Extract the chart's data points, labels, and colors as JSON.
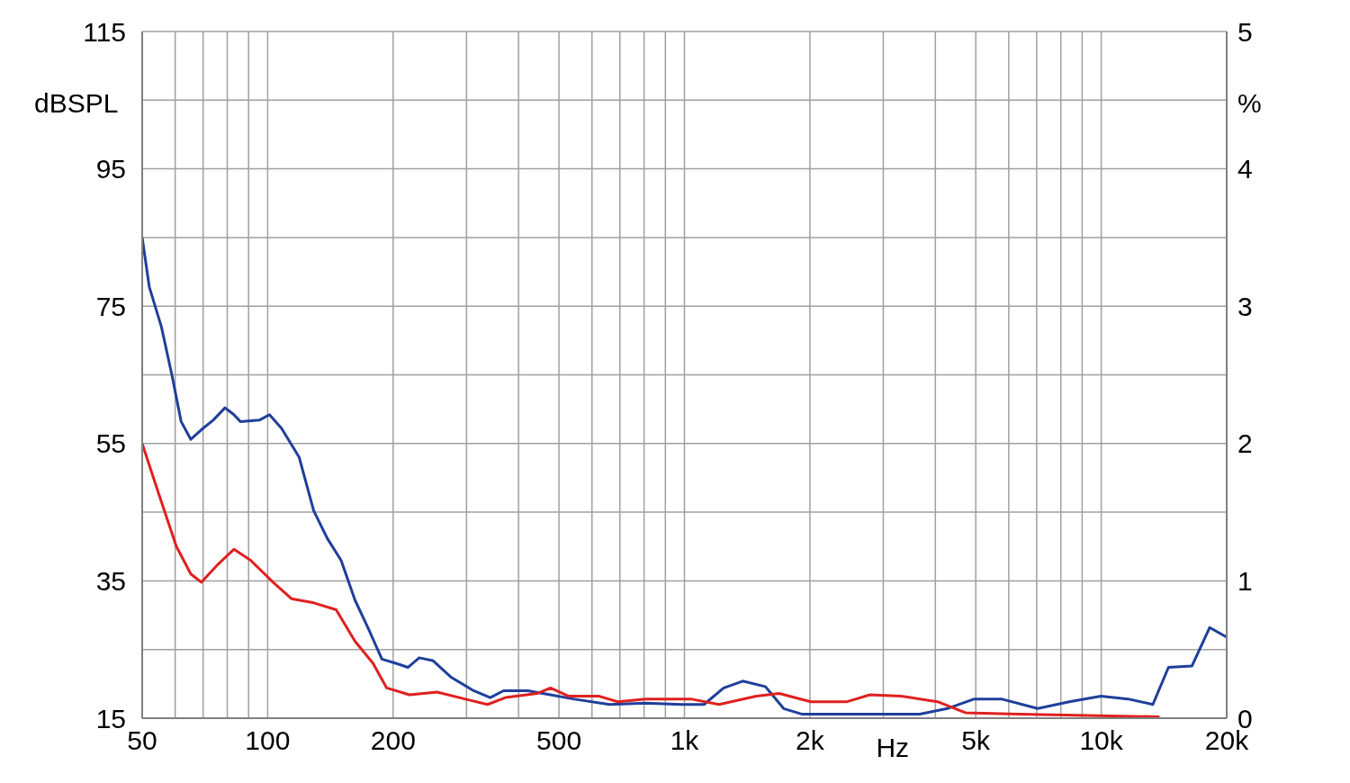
{
  "chart_data": {
    "type": "line",
    "xlabel": "Hz",
    "ylabel": "dBSPL",
    "y2label": "%",
    "log": "x",
    "grid": true,
    "legend": false,
    "marker": "none",
    "line_style": "solid",
    "xlim": [
      50,
      20000
    ],
    "xticks": [
      50,
      {
        "value": 60,
        "label": null
      },
      {
        "value": 70,
        "label": null
      },
      {
        "value": 80,
        "label": null
      },
      {
        "value": 90,
        "label": null
      },
      100,
      200,
      {
        "value": 300,
        "label": null
      },
      {
        "value": 400,
        "label": null
      },
      500,
      {
        "value": 600,
        "label": null
      },
      {
        "value": 700,
        "label": null
      },
      {
        "value": 800,
        "label": null
      },
      {
        "value": 900,
        "label": null
      },
      {
        "value": 1000,
        "label": "1k"
      },
      {
        "value": 2000,
        "label": "2k"
      },
      {
        "value": 3000,
        "label": null
      },
      {
        "value": 4000,
        "label": null
      },
      {
        "value": 5000,
        "label": "5k"
      },
      {
        "value": 6000,
        "label": null
      },
      {
        "value": 7000,
        "label": null
      },
      {
        "value": 8000,
        "label": null
      },
      {
        "value": 9000,
        "label": null
      },
      {
        "value": 10000,
        "label": "10k"
      },
      {
        "value": 20000,
        "label": "20k"
      }
    ],
    "ylim": [
      15,
      115
    ],
    "yticks": [
      15,
      {
        "value": 25,
        "label": null
      },
      35,
      {
        "value": 45,
        "label": null
      },
      55,
      {
        "value": 65,
        "label": null
      },
      75,
      {
        "value": 85,
        "label": null
      },
      95,
      {
        "value": 105,
        "label": null
      },
      115
    ],
    "y2lim": [
      0,
      5
    ],
    "y2ticks": [
      0,
      1,
      2,
      3,
      4,
      5
    ],
    "series": [
      {
        "color": "#1f3f9a",
        "axis": "y2",
        "x": [
          50,
          52,
          55.6,
          59,
          62,
          65.4,
          69.3,
          74,
          79,
          83,
          86,
          95.5,
          101,
          108,
          119,
          129,
          139,
          150,
          162,
          174,
          188,
          203,
          217,
          231,
          249,
          275,
          312,
          342,
          368,
          421,
          477,
          541,
          661,
          806,
          983,
          1114,
          1242,
          1380,
          1564,
          1730,
          1910,
          2721,
          3670,
          4270,
          4960,
          5760,
          7040,
          8380,
          9980,
          11600,
          13300,
          14500,
          16500,
          18200,
          20000
        ],
        "values": [
          3.5,
          3.14,
          2.85,
          2.49,
          2.16,
          2.03,
          2.1,
          2.17,
          2.26,
          2.21,
          2.16,
          2.17,
          2.21,
          2.11,
          1.9,
          1.51,
          1.31,
          1.15,
          0.86,
          0.66,
          0.43,
          0.4,
          0.37,
          0.44,
          0.42,
          0.3,
          0.2,
          0.15,
          0.2,
          0.2,
          0.17,
          0.14,
          0.1,
          0.11,
          0.1,
          0.1,
          0.22,
          0.27,
          0.23,
          0.07,
          0.03,
          0.03,
          0.03,
          0.07,
          0.14,
          0.14,
          0.07,
          0.12,
          0.16,
          0.14,
          0.1,
          0.37,
          0.38,
          0.66,
          0.59
        ]
      },
      {
        "color": "#e02020",
        "axis": "y2",
        "x": [
          50,
          54.7,
          60.4,
          65.4,
          69.3,
          76,
          83,
          91,
          103,
          114,
          129,
          146,
          162,
          179,
          193,
          219,
          255,
          297,
          337,
          372,
          443,
          477,
          528,
          625,
          692,
          806,
          1035,
          1211,
          1487,
          1688,
          2011,
          2457,
          2785,
          3315,
          4050,
          4720,
          6370,
          13800
        ],
        "values": [
          2.0,
          1.64,
          1.25,
          1.05,
          0.99,
          1.12,
          1.23,
          1.15,
          0.99,
          0.87,
          0.84,
          0.79,
          0.56,
          0.4,
          0.22,
          0.17,
          0.19,
          0.14,
          0.1,
          0.15,
          0.18,
          0.22,
          0.16,
          0.16,
          0.12,
          0.14,
          0.14,
          0.1,
          0.16,
          0.18,
          0.12,
          0.12,
          0.17,
          0.16,
          0.12,
          0.04,
          0.03,
          0.01
        ]
      }
    ]
  }
}
